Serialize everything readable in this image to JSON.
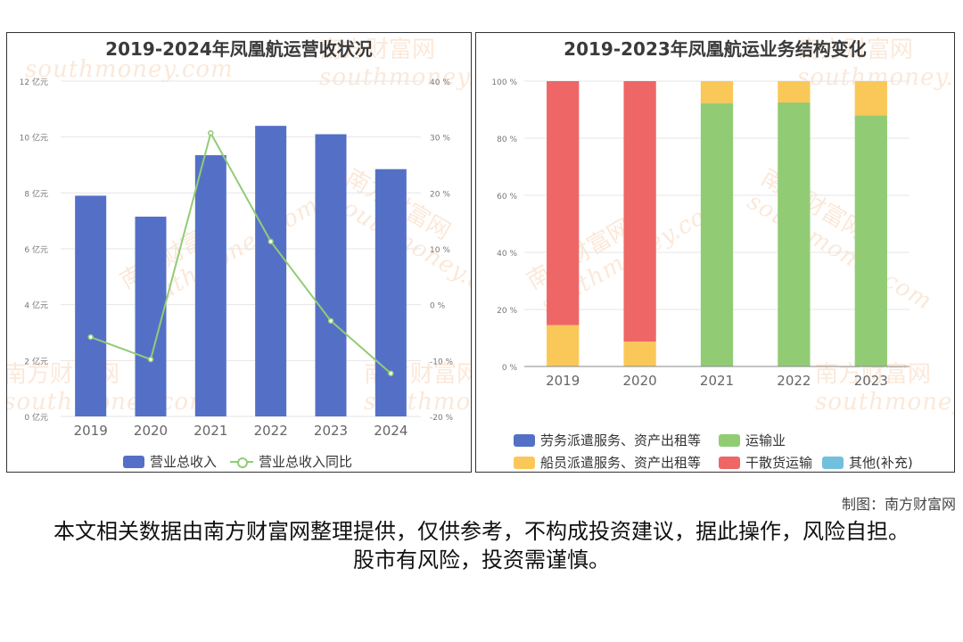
{
  "watermark": {
    "brand": "南方财富网",
    "site": "southmoney.com"
  },
  "credit": "制图：南方财富网",
  "disclaimer": "本文相关数据由南方财富网整理提供，仅供参考，不构成投资建议，据此操作，风险自担。股市有风险，投资需谨慎。",
  "chart_data": [
    {
      "type": "bar",
      "title": "2019-2024年凤凰航运营收状况",
      "categories": [
        "2019",
        "2020",
        "2021",
        "2022",
        "2023",
        "2024"
      ],
      "series": [
        {
          "name": "营业总收入",
          "type": "bar",
          "axis": "left",
          "color": "#5470c6",
          "values": [
            7.9,
            7.15,
            9.35,
            10.4,
            10.1,
            8.85
          ]
        },
        {
          "name": "营业总收入同比",
          "type": "line",
          "axis": "right",
          "color": "#91cc75",
          "values": [
            -5.8,
            -9.8,
            30.7,
            11.3,
            -2.9,
            -12.3
          ]
        }
      ],
      "y_left": {
        "ylim": [
          0,
          12
        ],
        "ticks": [
          0,
          2,
          4,
          6,
          8,
          10,
          12
        ],
        "tick_labels": [
          "0 亿元",
          "2 亿元",
          "4 亿元",
          "6 亿元",
          "8 亿元",
          "10 亿元",
          "12 亿元"
        ]
      },
      "y_right": {
        "ylim": [
          -20,
          40
        ],
        "ticks": [
          -20,
          -10,
          0,
          10,
          20,
          30,
          40
        ],
        "tick_labels": [
          "-20 %",
          "-10 %",
          "0 %",
          "10 %",
          "20 %",
          "30 %",
          "40 %"
        ]
      },
      "grid": true,
      "legend_position": "bottom"
    },
    {
      "type": "bar",
      "stacked": true,
      "title": "2019-2023年凤凰航运业务结构变化",
      "categories": [
        "2019",
        "2020",
        "2021",
        "2022",
        "2023"
      ],
      "series": [
        {
          "name": "劳务派遣服务、资产出租等",
          "color": "#5470c6",
          "values": [
            0,
            0,
            0,
            0,
            0
          ]
        },
        {
          "name": "运输业",
          "color": "#91cc75",
          "values": [
            0,
            0,
            92.3,
            92.5,
            88.0
          ]
        },
        {
          "name": "船员派遣服务、资产出租等",
          "color": "#fac858",
          "values": [
            14.5,
            8.7,
            7.7,
            7.5,
            12.0
          ]
        },
        {
          "name": "干散货运输",
          "color": "#ee6666",
          "values": [
            85.5,
            91.3,
            0,
            0,
            0
          ]
        },
        {
          "name": "其他(补充)",
          "color": "#73c0de",
          "values": [
            0,
            0,
            0,
            0,
            0
          ]
        }
      ],
      "ylim": [
        0,
        100
      ],
      "ticks": [
        0,
        20,
        40,
        60,
        80,
        100
      ],
      "tick_labels": [
        "0 %",
        "20 %",
        "40 %",
        "60 %",
        "80 %",
        "100 %"
      ],
      "grid": true,
      "legend_position": "bottom"
    }
  ]
}
